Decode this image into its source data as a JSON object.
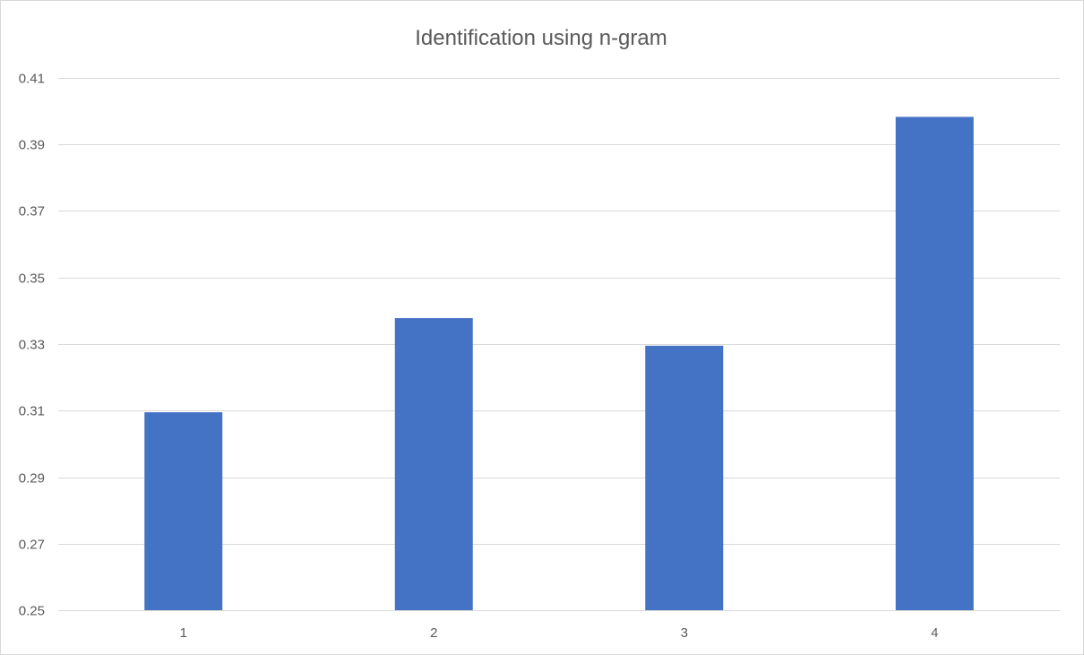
{
  "chart_data": {
    "type": "bar",
    "title": "Identification using n-gram",
    "xlabel": "",
    "ylabel": "",
    "categories": [
      "1",
      "2",
      "3",
      "4"
    ],
    "values": [
      0.3095,
      0.3378,
      0.3295,
      0.3983
    ],
    "ylim": [
      0.25,
      0.41
    ],
    "yticks": [
      "0.25",
      "0.27",
      "0.29",
      "0.31",
      "0.33",
      "0.35",
      "0.37",
      "0.39",
      "0.41"
    ],
    "grid": true,
    "legend": "none",
    "bar_color": "#4472c4",
    "grid_color": "#d9d9d9",
    "text_color": "#595959"
  }
}
